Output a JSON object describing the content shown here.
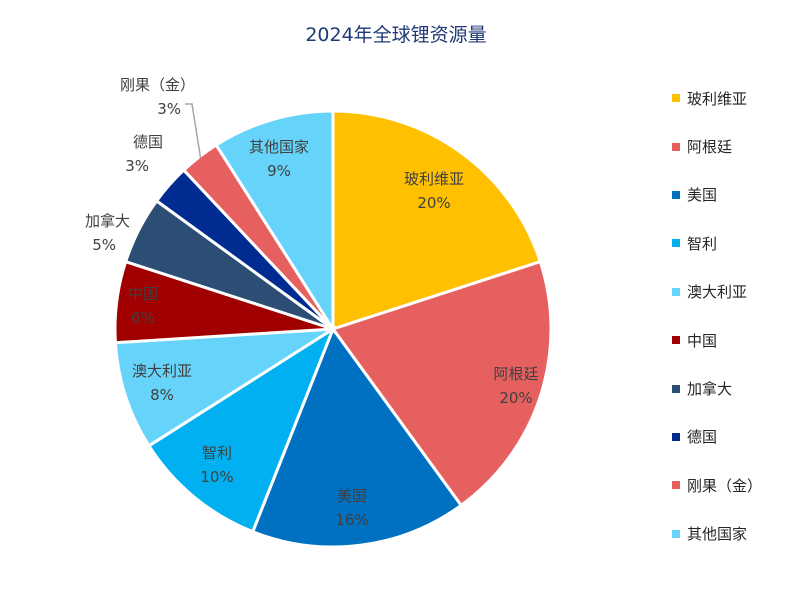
{
  "chart_data": {
    "type": "pie",
    "title": "2024年全球锂资源量",
    "legend_position": "right",
    "slices": [
      {
        "name": "玻利维亚",
        "value": 20,
        "label": "20%",
        "color": "#ffc000"
      },
      {
        "name": "阿根廷",
        "value": 20,
        "label": "20%",
        "color": "#e66060"
      },
      {
        "name": "美国",
        "value": 16,
        "label": "16%",
        "color": "#0070c0"
      },
      {
        "name": "智利",
        "value": 10,
        "label": "10%",
        "color": "#00b0f0"
      },
      {
        "name": "澳大利亚",
        "value": 8,
        "label": "8%",
        "color": "#66d3fa"
      },
      {
        "name": "中国",
        "value": 6,
        "label": "6%",
        "color": "#a00000"
      },
      {
        "name": "加拿大",
        "value": 5,
        "label": "5%",
        "color": "#2d4e74"
      },
      {
        "name": "德国",
        "value": 3,
        "label": "3%",
        "color": "#002b91"
      },
      {
        "name": "刚果（金）",
        "value": 3,
        "label": "3%",
        "color": "#e66060"
      },
      {
        "name": "其他国家",
        "value": 9,
        "label": "9%",
        "color": "#66d3fa"
      }
    ]
  }
}
